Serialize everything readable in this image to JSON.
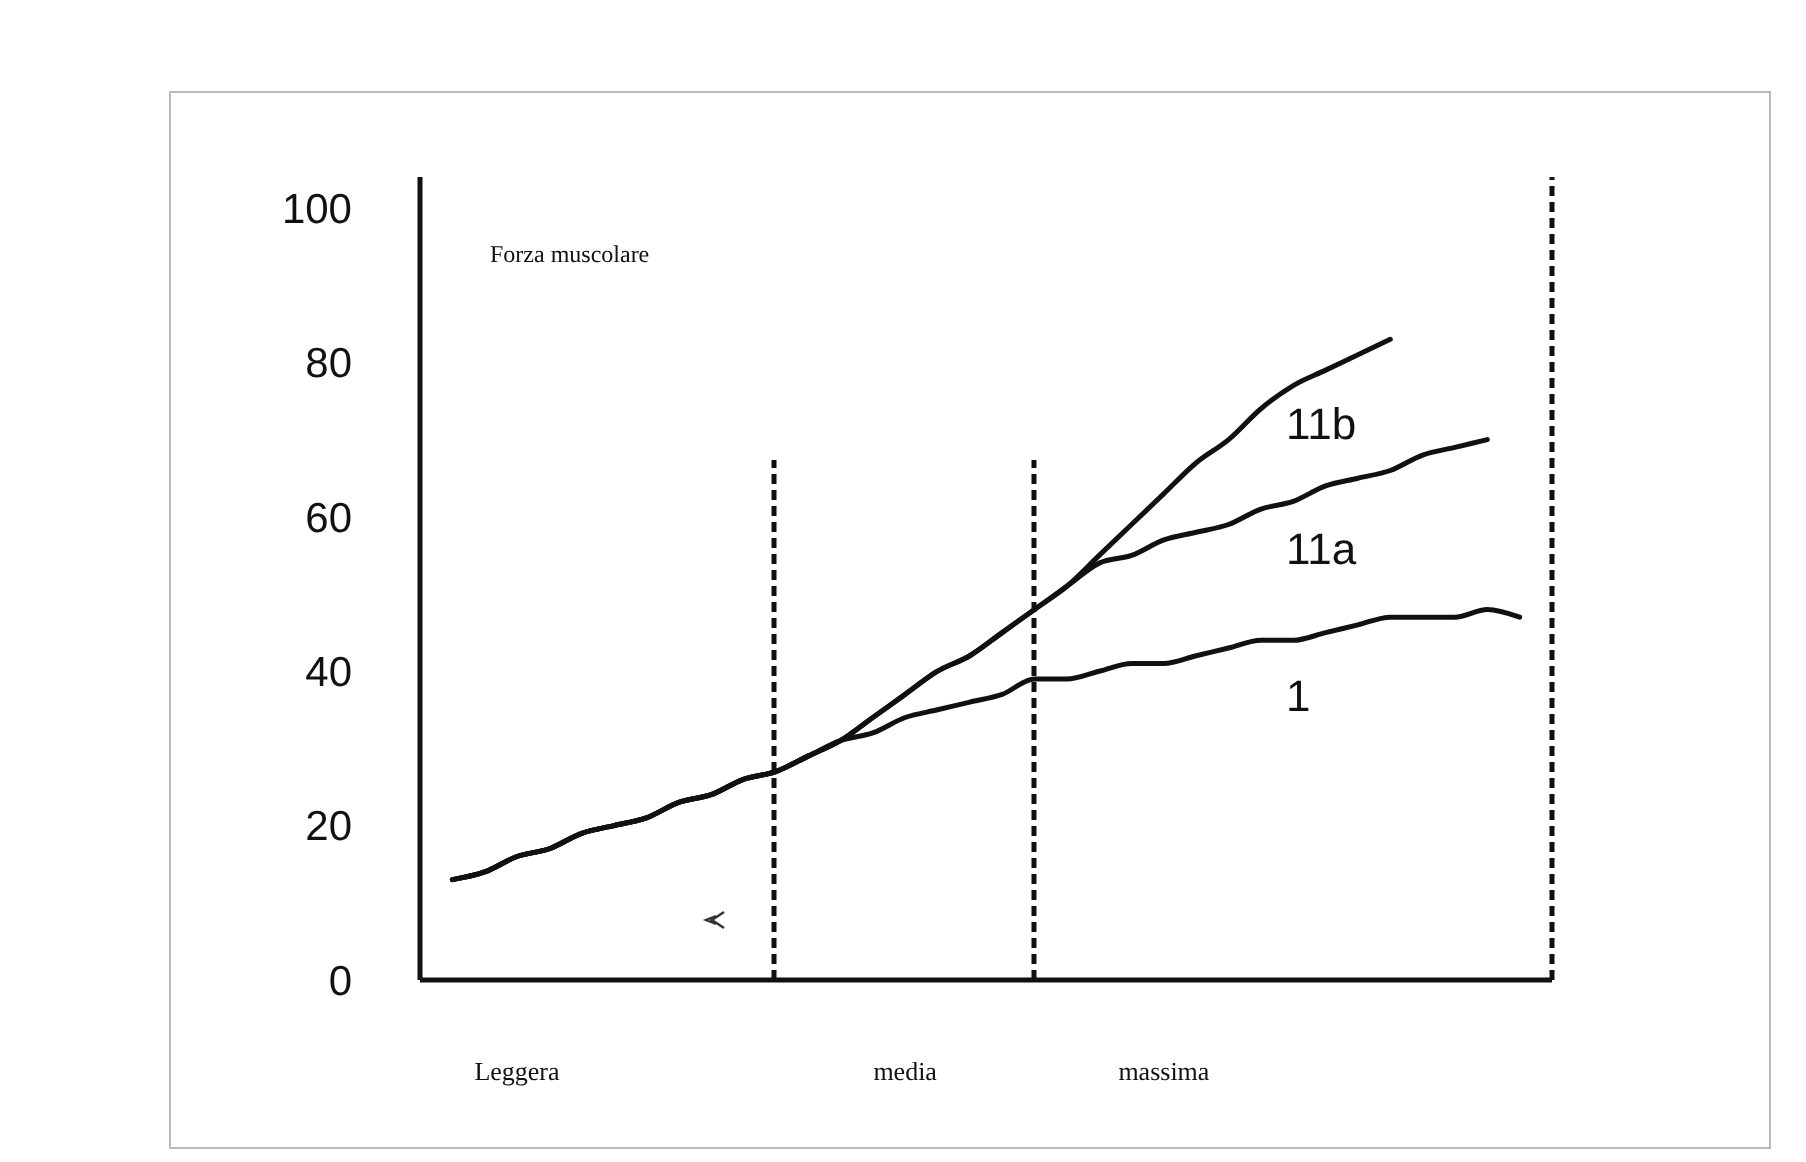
{
  "chart_data": {
    "type": "line",
    "ylabel": "Forza muscolare",
    "categories": [
      null,
      null,
      null,
      "Leggera",
      null,
      null,
      null,
      null,
      null,
      null,
      null,
      null,
      null,
      null,
      null,
      "media",
      null,
      null,
      null,
      null,
      null,
      null,
      null,
      "massima",
      null,
      null,
      null,
      null,
      null,
      null,
      null,
      null,
      null,
      null,
      null,
      null
    ],
    "ylim": [
      0,
      104
    ],
    "yticks": [
      0,
      20,
      40,
      60,
      80,
      100
    ],
    "series": [
      {
        "name": "11b",
        "color": "#111111",
        "values": [
          null,
          13,
          14,
          16,
          17,
          19,
          20,
          21,
          23,
          24,
          26,
          27,
          29,
          31,
          34,
          37,
          40,
          42,
          45,
          48,
          51,
          55,
          59,
          63,
          67,
          70,
          74,
          77,
          79,
          81,
          83,
          null,
          null,
          null,
          null,
          null
        ]
      },
      {
        "name": "11a",
        "color": "#111111",
        "values": [
          null,
          13,
          14,
          16,
          17,
          19,
          20,
          21,
          23,
          24,
          26,
          27,
          29,
          31,
          34,
          37,
          40,
          42,
          45,
          48,
          51,
          54,
          55,
          57,
          58,
          59,
          61,
          62,
          64,
          65,
          66,
          68,
          69,
          70,
          null,
          null
        ]
      },
      {
        "name": "1",
        "color": "#111111",
        "values": [
          null,
          13,
          14,
          16,
          17,
          19,
          20,
          21,
          23,
          24,
          26,
          27,
          29,
          31,
          32,
          34,
          35,
          36,
          37,
          39,
          39,
          40,
          41,
          41,
          42,
          43,
          44,
          44,
          45,
          46,
          47,
          47,
          47,
          48,
          47,
          null
        ]
      }
    ],
    "grid": false,
    "marker": "none",
    "line_style": "solid"
  }
}
